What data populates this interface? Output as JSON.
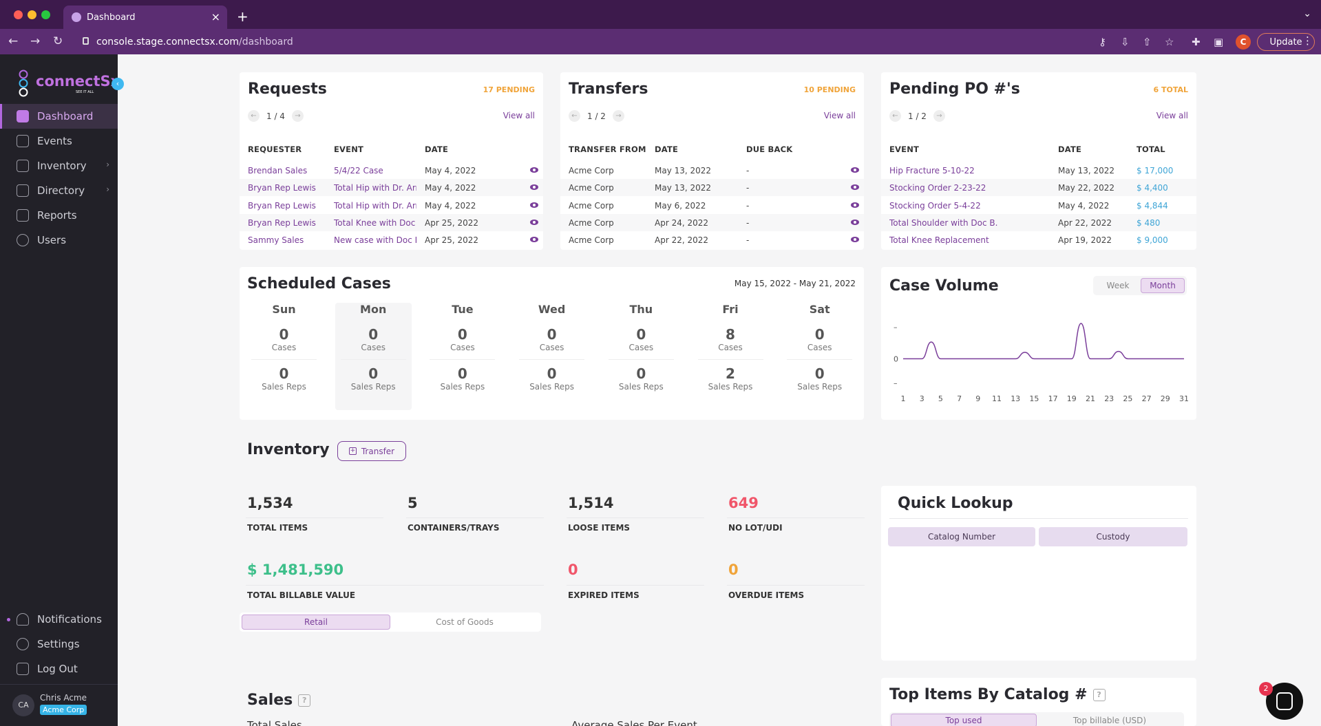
{
  "browser": {
    "tab_title": "Dashboard",
    "url_host": "console.stage.connectsx.com",
    "url_path": "/dashboard",
    "profile_initial": "C",
    "update_label": "Update"
  },
  "sidebar": {
    "logo_text": "connectSx",
    "logo_tagline": "SEE IT ALL",
    "items": [
      {
        "label": "Dashboard"
      },
      {
        "label": "Events"
      },
      {
        "label": "Inventory"
      },
      {
        "label": "Directory"
      },
      {
        "label": "Reports"
      },
      {
        "label": "Users"
      }
    ],
    "bottom": [
      {
        "label": "Notifications"
      },
      {
        "label": "Settings"
      },
      {
        "label": "Log Out"
      }
    ],
    "user": {
      "initials": "CA",
      "name": "Chris Acme",
      "org": "Acme Corp"
    }
  },
  "requests": {
    "title": "Requests",
    "pending": "17 PENDING",
    "page": "1 / 4",
    "view_all": "View all",
    "headers": [
      "REQUESTER",
      "EVENT",
      "DATE"
    ],
    "rows": [
      [
        "Brendan Sales",
        "5/4/22 Case",
        "May 4, 2022"
      ],
      [
        "Bryan Rep Lewis",
        "Total Hip with Dr. Arn...",
        "May 4, 2022"
      ],
      [
        "Bryan Rep Lewis",
        "Total Hip with Dr. Arn...",
        "May 4, 2022"
      ],
      [
        "Bryan Rep Lewis",
        "Total Knee with Doc ...",
        "Apr 25, 2022"
      ],
      [
        "Sammy Sales",
        "New case with Doc B...",
        "Apr 25, 2022"
      ]
    ]
  },
  "transfers": {
    "title": "Transfers",
    "pending": "10 PENDING",
    "page": "1 / 2",
    "view_all": "View all",
    "headers": [
      "TRANSFER FROM",
      "DATE",
      "DUE BACK"
    ],
    "rows": [
      [
        "Acme Corp",
        "May 13, 2022",
        "-"
      ],
      [
        "Acme Corp",
        "May 13, 2022",
        "-"
      ],
      [
        "Acme Corp",
        "May 6, 2022",
        "-"
      ],
      [
        "Acme Corp",
        "Apr 24, 2022",
        "-"
      ],
      [
        "Acme Corp",
        "Apr 22, 2022",
        "-"
      ]
    ]
  },
  "pending_po": {
    "title": "Pending PO #'s",
    "pending": "6 TOTAL",
    "page": "1 / 2",
    "view_all": "View all",
    "headers": [
      "EVENT",
      "DATE",
      "TOTAL"
    ],
    "rows": [
      [
        "Hip Fracture 5-10-22",
        "May 13, 2022",
        "$ 17,000"
      ],
      [
        "Stocking Order 2-23-22",
        "May 22, 2022",
        "$ 4,400"
      ],
      [
        "Stocking Order 5-4-22",
        "May 4, 2022",
        "$ 4,844"
      ],
      [
        "Total Shoulder with Doc B.",
        "Apr 22, 2022",
        "$ 480"
      ],
      [
        "Total Knee Replacement",
        "Apr 19, 2022",
        "$ 9,000"
      ]
    ]
  },
  "scheduled": {
    "title": "Scheduled Cases",
    "range": "May 15, 2022 - May 21, 2022",
    "cases_label": "Cases",
    "reps_label": "Sales Reps",
    "days": [
      {
        "name": "Sun",
        "cases": "0",
        "reps": "0"
      },
      {
        "name": "Mon",
        "cases": "0",
        "reps": "0"
      },
      {
        "name": "Tue",
        "cases": "0",
        "reps": "0"
      },
      {
        "name": "Wed",
        "cases": "0",
        "reps": "0"
      },
      {
        "name": "Thu",
        "cases": "0",
        "reps": "0"
      },
      {
        "name": "Fri",
        "cases": "8",
        "reps": "2"
      },
      {
        "name": "Sat",
        "cases": "0",
        "reps": "0"
      }
    ]
  },
  "case_volume": {
    "title": "Case Volume",
    "toggle": [
      "Week",
      "Month"
    ],
    "selected": "Month",
    "y_tick": "0",
    "x_ticks": [
      "1",
      "3",
      "5",
      "7",
      "9",
      "11",
      "13",
      "15",
      "17",
      "19",
      "21",
      "23",
      "25",
      "27",
      "29",
      "31"
    ]
  },
  "chart_data": {
    "type": "line",
    "x": [
      1,
      3,
      4,
      5,
      7,
      9,
      11,
      13,
      14,
      15,
      17,
      19,
      20,
      21,
      22,
      23,
      24,
      25,
      27,
      29,
      31
    ],
    "series": [
      {
        "values": [
          0,
          0,
          0.9,
          0,
          0,
          0,
          0,
          0,
          0.35,
          0,
          0,
          0,
          1.9,
          0,
          0,
          0,
          0.4,
          0,
          0,
          0,
          0
        ]
      }
    ],
    "ylim": [
      -1.5,
      1.9
    ],
    "grid": false
  },
  "inventory": {
    "title": "Inventory",
    "transfer_label": "Transfer",
    "stats": [
      {
        "value": "1,534",
        "label": "TOTAL ITEMS"
      },
      {
        "value": "5",
        "label": "CONTAINERS/TRAYS"
      },
      {
        "value": "1,514",
        "label": "LOOSE ITEMS"
      },
      {
        "value": "649",
        "label": "NO LOT/UDI"
      },
      {
        "value": "$ 1,481,590",
        "label": "TOTAL BILLABLE VALUE"
      },
      {
        "value": "0",
        "label": "EXPIRED ITEMS"
      },
      {
        "value": "0",
        "label": "OVERDUE ITEMS"
      }
    ],
    "value_toggle": [
      "Retail",
      "Cost of Goods"
    ]
  },
  "quick_lookup": {
    "title": "Quick Lookup",
    "options": [
      "Catalog Number",
      "Custody"
    ]
  },
  "top_items": {
    "title": "Top Items By Catalog #",
    "help": "?",
    "options": [
      "Top used",
      "Top billable (USD)"
    ]
  },
  "sales": {
    "title": "Sales",
    "help": "?",
    "sub1": "Total Sales",
    "sub2": "Average Sales Per Event"
  },
  "chat": {
    "badge": "2"
  },
  "colors": {
    "accent": "#7a3e9a",
    "pending": "#f0a43a",
    "money": "#3fa5d6",
    "green": "#3dbf8a",
    "red": "#f0566a",
    "orange": "#f0a43a"
  }
}
